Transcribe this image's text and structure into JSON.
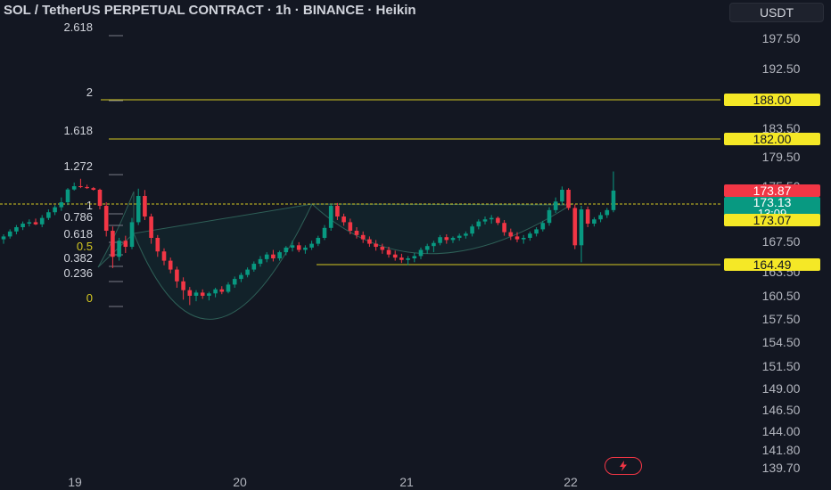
{
  "header": {
    "title": "SOL / TetherUS PERPETUAL CONTRACT · 1h · BINANCE · Heikin",
    "currency_button": "USDT"
  },
  "chart_data": {
    "type": "candlestick",
    "symbol": "SOL / TetherUS PERPETUAL CONTRACT",
    "interval": "1h",
    "exchange": "BINANCE",
    "style": "Heikin Ashi",
    "price_axis": {
      "ticks": [
        "197.50",
        "192.50",
        "183.50",
        "179.50",
        "175.50",
        "167.50",
        "163.50",
        "160.50",
        "157.50",
        "154.50",
        "151.50",
        "149.00",
        "146.50",
        "144.00",
        "141.80",
        "139.70"
      ],
      "tick_values": [
        197.5,
        192.5,
        183.5,
        179.5,
        175.5,
        167.5,
        163.5,
        160.5,
        157.5,
        154.5,
        151.5,
        149.0,
        146.5,
        144.0,
        141.8,
        139.7
      ]
    },
    "time_axis": {
      "labels": [
        "19",
        "20",
        "21",
        "22"
      ]
    },
    "fib_levels": [
      {
        "label": "2.618",
        "color": "#d1d4dc"
      },
      {
        "label": "2",
        "color": "#d1d4dc"
      },
      {
        "label": "1.618",
        "color": "#d1d4dc"
      },
      {
        "label": "1.272",
        "color": "#d1d4dc"
      },
      {
        "label": "1",
        "color": "#d1d4dc"
      },
      {
        "label": "0.786",
        "color": "#d1d4dc"
      },
      {
        "label": "0.618",
        "color": "#d1d4dc"
      },
      {
        "label": "0.5",
        "color": "#d4c821"
      },
      {
        "label": "0.382",
        "color": "#d1d4dc"
      },
      {
        "label": "0.236",
        "color": "#d1d4dc"
      },
      {
        "label": "0",
        "color": "#d4c821"
      }
    ],
    "horizontal_lines": [
      {
        "label": "188.00",
        "color": "#d4c821",
        "value": 188.0
      },
      {
        "label": "182.00",
        "color": "#d4c821",
        "value": 182.0
      },
      {
        "label": "173.07",
        "color": "#d4c821",
        "value": 173.07
      },
      {
        "label": "164.49",
        "color": "#d4c821",
        "value": 164.49
      }
    ],
    "price_labels": [
      {
        "label": "173.87",
        "color": "#f23645"
      },
      {
        "label": "173.13",
        "color": "#089981"
      },
      {
        "label": "13:09",
        "color": "#089981"
      }
    ],
    "last_price": 173.13,
    "countdown": "13:09",
    "colors": {
      "up": "#089981",
      "down": "#f23645",
      "level": "#d4c821",
      "background": "#131722",
      "text": "#d1d4dc"
    },
    "candles": [
      [
        167.8,
        168.5,
        167.2,
        168.2
      ],
      [
        168.2,
        169.2,
        167.9,
        168.9
      ],
      [
        168.9,
        169.8,
        168.5,
        169.5
      ],
      [
        169.5,
        170.3,
        169.1,
        170.0
      ],
      [
        170.0,
        170.6,
        169.6,
        170.2
      ],
      [
        170.2,
        170.7,
        169.8,
        169.9
      ],
      [
        169.9,
        171.2,
        169.5,
        170.8
      ],
      [
        170.8,
        172.0,
        170.5,
        171.6
      ],
      [
        171.6,
        172.6,
        171.2,
        172.3
      ],
      [
        172.3,
        173.4,
        171.8,
        173.0
      ],
      [
        173.0,
        174.8,
        172.6,
        174.3
      ],
      [
        174.3,
        176.0,
        173.9,
        175.5
      ],
      [
        175.5,
        176.5,
        174.8,
        175.2
      ],
      [
        175.2,
        175.7,
        174.5,
        174.8
      ],
      [
        174.8,
        175.2,
        173.9,
        174.2
      ],
      [
        174.2,
        174.6,
        172.0,
        172.5
      ],
      [
        172.5,
        173.0,
        168.2,
        169.0
      ],
      [
        169.0,
        169.6,
        164.0,
        165.5
      ],
      [
        165.5,
        168.0,
        165.0,
        167.6
      ],
      [
        167.6,
        168.3,
        166.0,
        166.8
      ],
      [
        166.8,
        170.8,
        166.5,
        170.2
      ],
      [
        170.2,
        174.6,
        169.8,
        173.5
      ],
      [
        173.5,
        174.1,
        170.5,
        171.0
      ],
      [
        171.0,
        171.4,
        167.2,
        168.0
      ],
      [
        168.0,
        168.4,
        165.5,
        166.2
      ],
      [
        166.2,
        166.6,
        164.4,
        165.0
      ],
      [
        165.0,
        165.4,
        163.3,
        163.8
      ],
      [
        163.8,
        164.2,
        161.5,
        162.3
      ],
      [
        162.3,
        162.8,
        160.0,
        161.2
      ],
      [
        161.2,
        161.6,
        159.3,
        160.5
      ],
      [
        160.5,
        161.2,
        159.8,
        160.9
      ],
      [
        160.9,
        161.3,
        160.1,
        160.5
      ],
      [
        160.5,
        161.0,
        159.9,
        160.8
      ],
      [
        160.8,
        161.5,
        160.3,
        161.3
      ],
      [
        161.3,
        161.7,
        160.7,
        161.0
      ],
      [
        161.0,
        162.2,
        160.8,
        161.9
      ],
      [
        161.9,
        162.9,
        161.5,
        162.6
      ],
      [
        162.6,
        163.4,
        162.2,
        163.1
      ],
      [
        163.1,
        164.1,
        162.8,
        163.8
      ],
      [
        163.8,
        164.9,
        163.5,
        164.6
      ],
      [
        164.6,
        165.6,
        164.2,
        165.2
      ],
      [
        165.2,
        166.1,
        164.8,
        165.8
      ],
      [
        165.8,
        166.4,
        164.9,
        165.3
      ],
      [
        165.3,
        166.3,
        165.0,
        166.1
      ],
      [
        166.1,
        166.9,
        165.7,
        166.7
      ],
      [
        166.7,
        167.6,
        166.2,
        167.0
      ],
      [
        167.0,
        167.4,
        166.1,
        166.4
      ],
      [
        166.4,
        167.0,
        165.9,
        166.7
      ],
      [
        166.7,
        167.6,
        166.4,
        167.2
      ],
      [
        167.2,
        168.3,
        166.9,
        168.0
      ],
      [
        168.0,
        169.8,
        167.7,
        169.4
      ],
      [
        169.4,
        172.8,
        169.0,
        172.5
      ],
      [
        172.5,
        172.9,
        170.5,
        171.0
      ],
      [
        171.0,
        171.4,
        169.7,
        170.2
      ],
      [
        170.2,
        170.7,
        168.5,
        169.0
      ],
      [
        169.0,
        169.5,
        167.9,
        168.4
      ],
      [
        168.4,
        168.9,
        167.3,
        167.8
      ],
      [
        167.8,
        168.2,
        166.8,
        167.2
      ],
      [
        167.2,
        167.7,
        166.3,
        166.8
      ],
      [
        166.8,
        167.2,
        165.9,
        166.4
      ],
      [
        166.4,
        166.8,
        165.4,
        165.8
      ],
      [
        165.8,
        166.3,
        165.0,
        165.4
      ],
      [
        165.4,
        165.9,
        164.7,
        165.1
      ],
      [
        165.1,
        165.6,
        164.4,
        165.3
      ],
      [
        165.3,
        166.0,
        164.8,
        165.6
      ],
      [
        165.6,
        166.7,
        165.2,
        166.4
      ],
      [
        166.4,
        167.2,
        165.9,
        166.9
      ],
      [
        166.9,
        167.6,
        166.1,
        167.3
      ],
      [
        167.3,
        168.4,
        167.0,
        168.1
      ],
      [
        168.1,
        168.5,
        167.2,
        167.7
      ],
      [
        167.7,
        168.2,
        167.3,
        168.0
      ],
      [
        168.0,
        168.6,
        167.6,
        168.3
      ],
      [
        168.3,
        168.9,
        167.9,
        168.6
      ],
      [
        168.6,
        169.9,
        168.2,
        169.6
      ],
      [
        169.6,
        170.6,
        169.2,
        170.3
      ],
      [
        170.3,
        171.0,
        169.9,
        170.6
      ],
      [
        170.6,
        171.2,
        170.0,
        170.8
      ],
      [
        170.8,
        171.0,
        169.8,
        170.1
      ],
      [
        170.1,
        170.5,
        168.3,
        168.8
      ],
      [
        168.8,
        169.3,
        167.7,
        168.2
      ],
      [
        168.2,
        168.8,
        167.4,
        167.8
      ],
      [
        167.8,
        168.4,
        167.2,
        168.0
      ],
      [
        168.0,
        168.9,
        167.6,
        168.6
      ],
      [
        168.6,
        169.5,
        168.2,
        169.2
      ],
      [
        169.2,
        170.4,
        168.9,
        170.1
      ],
      [
        170.1,
        172.3,
        169.7,
        171.9
      ],
      [
        171.9,
        173.4,
        171.5,
        173.1
      ],
      [
        173.1,
        175.4,
        172.7,
        174.2
      ],
      [
        174.2,
        174.8,
        171.9,
        172.2
      ],
      [
        172.2,
        172.7,
        166.5,
        167.0
      ],
      [
        167.0,
        172.5,
        164.8,
        172.0
      ],
      [
        172.0,
        172.4,
        169.5,
        170.0
      ],
      [
        170.0,
        170.9,
        169.6,
        170.6
      ],
      [
        170.6,
        171.6,
        170.2,
        171.2
      ],
      [
        171.2,
        172.2,
        170.8,
        171.9
      ],
      [
        171.9,
        177.5,
        171.6,
        173.9
      ]
    ]
  }
}
